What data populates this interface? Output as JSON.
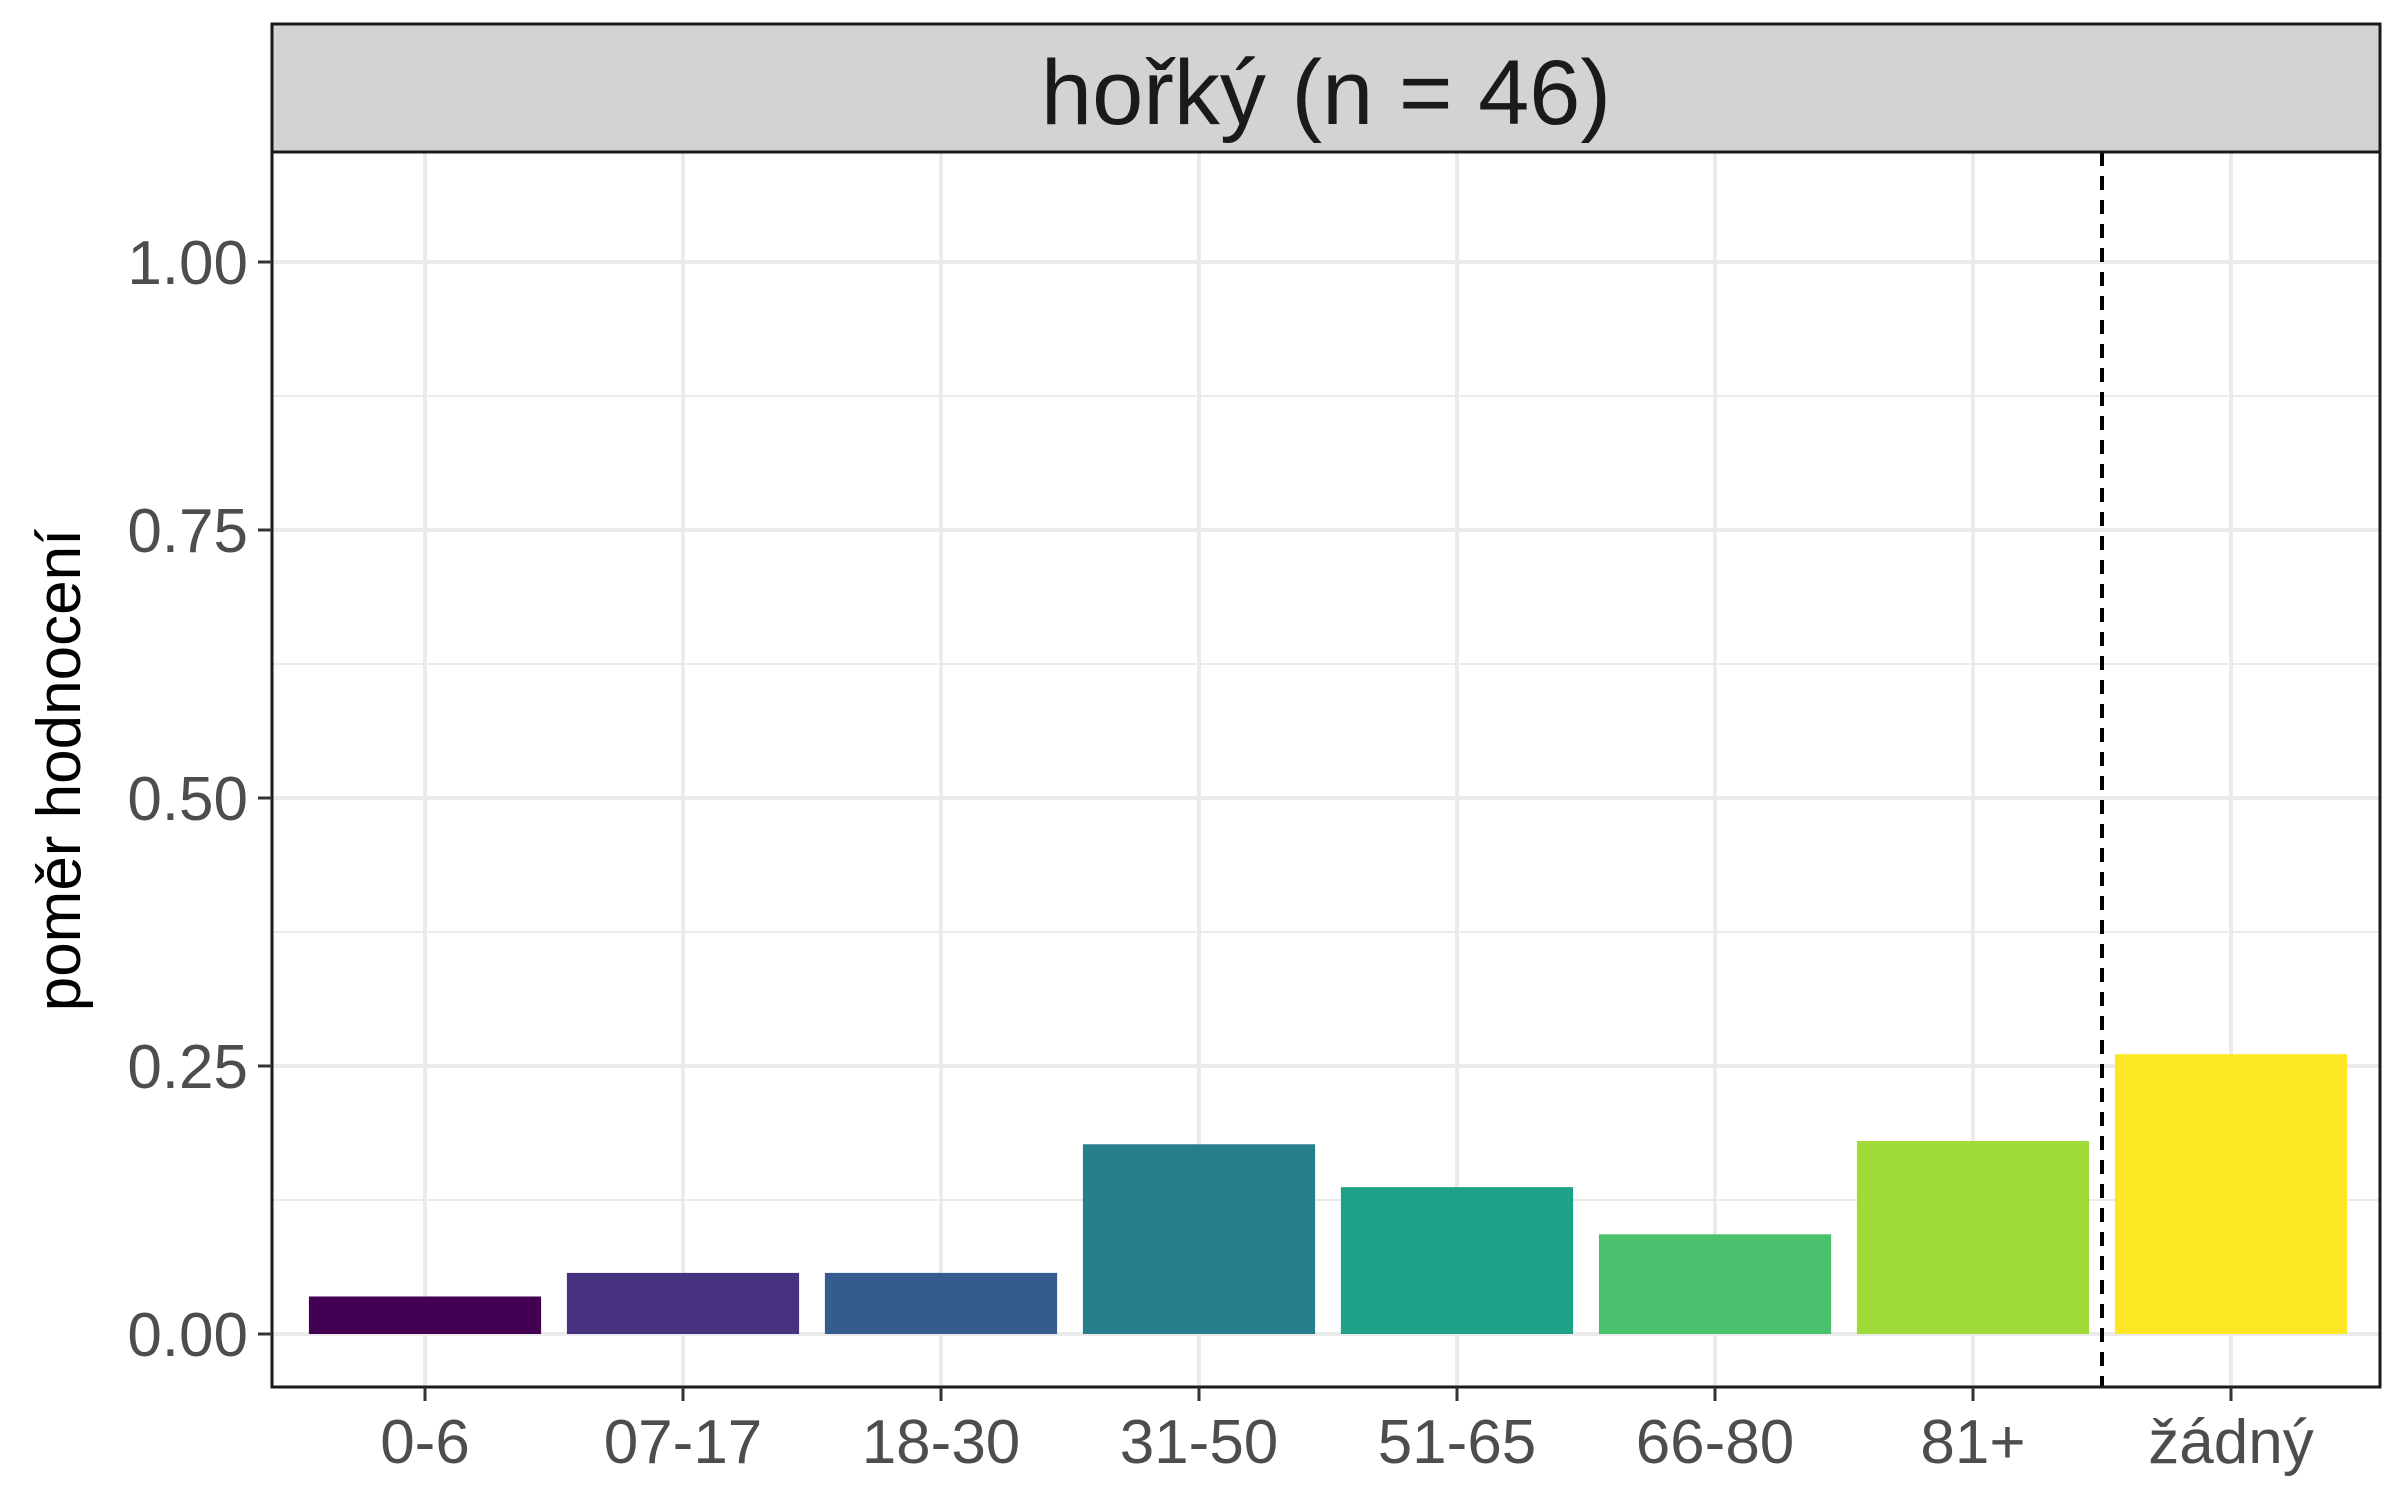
{
  "chart_data": {
    "type": "bar",
    "facet_title": "hořký (n = 46)",
    "ylabel": "poměr hodnocení",
    "xlabel": "",
    "categories": [
      "0-6",
      "07-17",
      "18-30",
      "31-50",
      "51-65",
      "66-80",
      "81+",
      "žádný"
    ],
    "values": [
      0.035,
      0.057,
      0.057,
      0.177,
      0.137,
      0.093,
      0.18,
      0.261
    ],
    "colors": [
      "#440154",
      "#46327E",
      "#365C8D",
      "#277F8E",
      "#1FA187",
      "#4AC16D",
      "#A0DA39",
      "#FDE725"
    ],
    "ylim": [
      -0.05,
      1.1
    ],
    "yticks": [
      "0.00",
      "0.25",
      "0.50",
      "0.75",
      "1.00"
    ],
    "grid": true,
    "legend": "none",
    "reference_line": {
      "between": [
        "81+",
        "žádný"
      ],
      "style": "dashed"
    }
  }
}
